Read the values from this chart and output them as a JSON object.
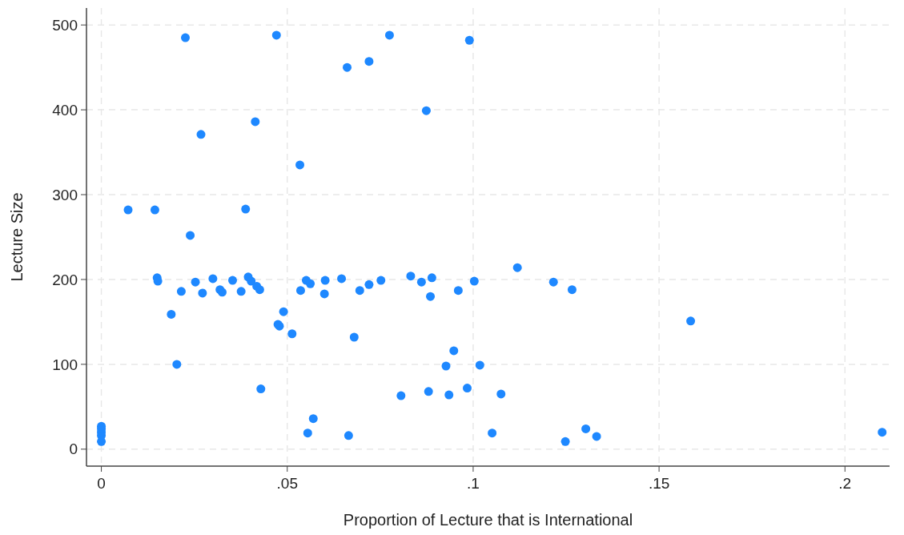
{
  "chart_data": {
    "type": "scatter",
    "xlabel": "Proportion of Lecture that is International",
    "ylabel": "Lecture Size",
    "xlim": [
      -0.004,
      0.212
    ],
    "ylim": [
      -20,
      520
    ],
    "xticks": [
      0,
      {
        "value": 0.05,
        "label": ".05"
      },
      {
        "value": 0.1,
        "label": ".1"
      },
      {
        "value": 0.15,
        "label": ".15"
      },
      {
        "value": 0.2,
        "label": ".2"
      }
    ],
    "yticks": [
      0,
      100,
      200,
      300,
      400,
      500
    ],
    "grid": true,
    "marker": "circle",
    "series": [
      {
        "color": "#1e88ff",
        "x": [
          0,
          0,
          0,
          0,
          0,
          0.0072,
          0.0144,
          0.015,
          0.0152,
          0.0226,
          0.0239,
          0.0268,
          0.0215,
          0.0188,
          0.0203,
          0.0253,
          0.0272,
          0.03,
          0.0319,
          0.0325,
          0.0353,
          0.0376,
          0.0388,
          0.0395,
          0.0403,
          0.0414,
          0.0418,
          0.0426,
          0.0429,
          0.0471,
          0.0475,
          0.0479,
          0.049,
          0.0513,
          0.0534,
          0.0536,
          0.0551,
          0.0562,
          0.0555,
          0.057,
          0.0602,
          0.06,
          0.0646,
          0.0661,
          0.0665,
          0.068,
          0.0695,
          0.072,
          0.072,
          0.0752,
          0.0775,
          0.0806,
          0.0832,
          0.0861,
          0.0874,
          0.088,
          0.0885,
          0.0889,
          0.0927,
          0.0935,
          0.0948,
          0.096,
          0.0984,
          0.099,
          0.1003,
          0.1018,
          0.1051,
          0.1075,
          0.1119,
          0.1216,
          0.1266,
          0.1585,
          0.1248,
          0.1303,
          0.1332,
          0.21
        ],
        "values": [
          9,
          16,
          20,
          24,
          27,
          282,
          282,
          202,
          198,
          485,
          252,
          371,
          186,
          159,
          100,
          197,
          184,
          201,
          188,
          185,
          199,
          186,
          283,
          203,
          198,
          386,
          192,
          188,
          71,
          488,
          147,
          145,
          162,
          136,
          335,
          187,
          199,
          195,
          19,
          36,
          199,
          183,
          201,
          450,
          16,
          132,
          187,
          194,
          457,
          199,
          488,
          63,
          204,
          197,
          399,
          68,
          180,
          202,
          98,
          64,
          116,
          187,
          72,
          482,
          198,
          99,
          19,
          65,
          214,
          197,
          188,
          151,
          9,
          24,
          15,
          20
        ]
      }
    ]
  }
}
